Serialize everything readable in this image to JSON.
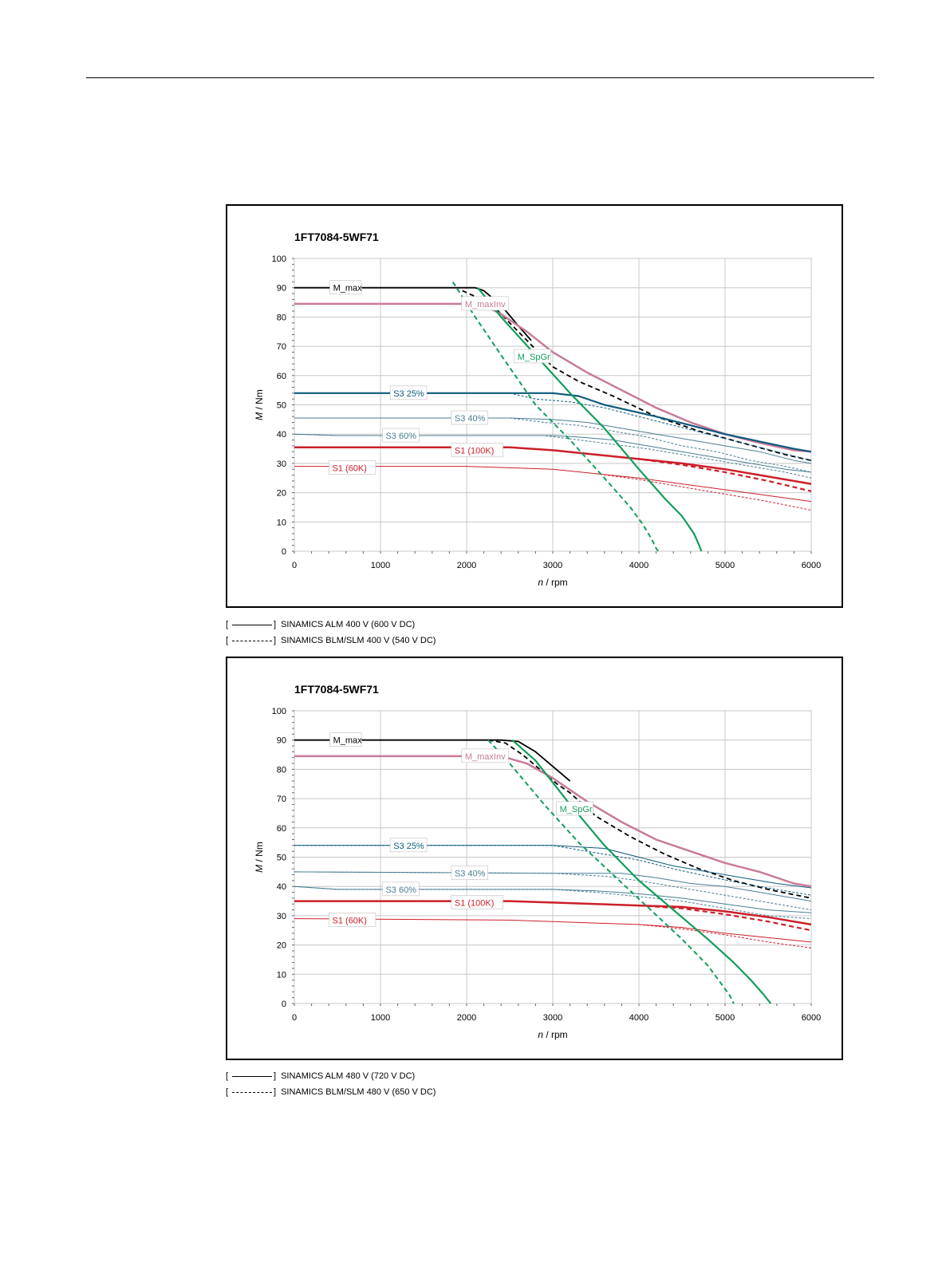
{
  "page": {
    "top_rule": true
  },
  "charts": [
    {
      "id": "chart1",
      "legend": [
        {
          "open": "[",
          "style": "solid",
          "close": "]",
          "label": "SINAMICS ALM 400 V (600 V DC)"
        },
        {
          "open": "[",
          "style": "dashed",
          "close": "]",
          "label": "SINAMICS BLM/SLM 400 V (540 V DC)"
        }
      ]
    },
    {
      "id": "chart2",
      "legend": [
        {
          "open": "[",
          "style": "solid",
          "close": "]",
          "label": "SINAMICS ALM 480 V (720 V DC)"
        },
        {
          "open": "[",
          "style": "dashed",
          "close": "]",
          "label": "SINAMICS BLM/SLM 480 V (650 V DC)"
        }
      ]
    }
  ],
  "chart_data": [
    {
      "type": "line",
      "title": "1FT7084-5WF71",
      "xlabel_italic": "n",
      "xlabel_unit": " / rpm",
      "ylabel_italic": "M",
      "ylabel_unit": " / Nm",
      "xlim": [
        0,
        6000
      ],
      "ylim": [
        0,
        100
      ],
      "xticks": [
        0,
        1000,
        2000,
        3000,
        4000,
        5000,
        6000
      ],
      "yticks": [
        0,
        10,
        20,
        30,
        40,
        50,
        60,
        70,
        80,
        90,
        100
      ],
      "colors": {
        "black": "#000000",
        "pink": "#c97a9a",
        "teal": "#0e5a7c",
        "lteal": "#4a7d93",
        "red": "#cc1f2a",
        "green": "#129e5b"
      },
      "series": [
        {
          "name": "M_max",
          "color": "black",
          "width": 1.8,
          "dash": false,
          "x": [
            0,
            2100,
            2200,
            2400,
            2600,
            2750
          ],
          "y": [
            90,
            90,
            89,
            84,
            77,
            72
          ]
        },
        {
          "name": "M_max dashed",
          "color": "black",
          "width": 1.8,
          "dash": true,
          "x": [
            1950,
            2100,
            2300,
            2500,
            2700,
            3000,
            3300,
            3700,
            4200,
            4700,
            5200,
            5700,
            6000
          ],
          "y": [
            89,
            87,
            84,
            78,
            72,
            63,
            58,
            53,
            46,
            41,
            37,
            33,
            31
          ]
        },
        {
          "name": "M_maxInv",
          "color": "pink",
          "width": 2.5,
          "dash": false,
          "x": [
            0,
            2000,
            2200,
            2400,
            2700,
            3000,
            3400,
            3800,
            4200,
            4600,
            5000,
            5400,
            5800,
            6000
          ],
          "y": [
            84.5,
            84.5,
            84,
            81,
            75,
            68,
            61,
            55,
            49,
            44,
            40,
            37,
            34.5,
            34
          ]
        },
        {
          "name": "S3 25%",
          "color": "teal",
          "width": 2.2,
          "dash": false,
          "x": [
            0,
            2500,
            3000,
            3300,
            3600,
            3900,
            4200,
            4600,
            5000,
            5400,
            5800,
            6000
          ],
          "y": [
            54,
            54,
            54,
            53,
            50,
            48,
            46,
            43,
            40,
            37.5,
            35,
            34
          ]
        },
        {
          "name": "S3 25% dashed",
          "color": "teal",
          "width": 1,
          "dash": true,
          "x": [
            0,
            2500,
            2800,
            3200,
            3600,
            4000,
            4400,
            4800,
            5200,
            5600,
            6000
          ],
          "y": [
            54,
            54,
            52,
            51,
            49,
            46,
            43,
            40,
            37,
            34,
            31
          ]
        },
        {
          "name": "S3 40%",
          "color": "lteal",
          "width": 1,
          "dash": false,
          "x": [
            0,
            2500,
            3000,
            3400,
            3800,
            4200,
            4600,
            5000,
            5400,
            5800,
            6000
          ],
          "y": [
            45.5,
            45.5,
            45,
            44,
            42,
            40,
            38,
            36,
            34,
            31,
            30
          ]
        },
        {
          "name": "S3 40% dashed",
          "color": "lteal",
          "width": 1,
          "dash": true,
          "x": [
            0,
            2500,
            2900,
            3300,
            3700,
            4100,
            4500,
            4900,
            5300,
            5700,
            6000
          ],
          "y": [
            45.5,
            45.5,
            44,
            43,
            41,
            39,
            36,
            34,
            31,
            29,
            27
          ]
        },
        {
          "name": "S3 60%",
          "color": "lteal",
          "width": 1,
          "dash": false,
          "x": [
            0,
            500,
            3000,
            3300,
            3700,
            4100,
            4500,
            4900,
            5300,
            5700,
            6000
          ],
          "y": [
            40,
            39.5,
            39.5,
            39,
            38,
            36,
            34,
            32,
            30,
            28,
            27
          ]
        },
        {
          "name": "S3 60% dashed",
          "color": "lteal",
          "width": 1,
          "dash": true,
          "x": [
            0,
            500,
            2900,
            3300,
            3700,
            4100,
            4500,
            4900,
            5300,
            5700,
            6000
          ],
          "y": [
            40,
            39.5,
            39.5,
            38,
            36.5,
            35,
            33,
            31,
            29,
            27,
            25
          ]
        },
        {
          "name": "S1 (100K)",
          "color": "red",
          "width": 2.5,
          "dash": false,
          "x": [
            0,
            2500,
            3000,
            3500,
            4000,
            4500,
            5000,
            5500,
            6000
          ],
          "y": [
            35.5,
            35.5,
            34.5,
            33,
            31.5,
            30,
            28,
            25.5,
            23
          ]
        },
        {
          "name": "S1 (100K) dashed",
          "color": "red",
          "width": 2.2,
          "dash": true,
          "x": [
            3500,
            4000,
            4500,
            5000,
            5500,
            6000
          ],
          "y": [
            33,
            31.5,
            29.5,
            27,
            24,
            20.5
          ]
        },
        {
          "name": "S1 (60K)",
          "color": "red",
          "width": 1,
          "dash": false,
          "x": [
            0,
            2000,
            3000,
            3500,
            4000,
            4500,
            5000,
            5500,
            6000
          ],
          "y": [
            29,
            29,
            28,
            26.5,
            25,
            23,
            21,
            19,
            17
          ]
        },
        {
          "name": "S1 (60K) dashed",
          "color": "red",
          "width": 1,
          "dash": true,
          "x": [
            3500,
            4000,
            4500,
            5000,
            5500,
            6000
          ],
          "y": [
            26.5,
            24.5,
            22,
            19.5,
            17,
            14
          ]
        },
        {
          "name": "M_SpGr",
          "color": "green",
          "width": 2.2,
          "dash": false,
          "x": [
            2130,
            2400,
            2800,
            3200,
            3600,
            4000,
            4300,
            4500,
            4640,
            4700,
            4725
          ],
          "y": [
            90,
            80,
            67,
            54,
            42,
            28,
            18,
            12,
            6,
            2,
            0
          ]
        },
        {
          "name": "M_SpGr dashed",
          "color": "green",
          "width": 2,
          "dash": true,
          "x": [
            1840,
            2100,
            2400,
            2800,
            3200,
            3600,
            3900,
            4050,
            4150,
            4200,
            4225
          ],
          "y": [
            92,
            80,
            67,
            50,
            38,
            25,
            15,
            9,
            4,
            1,
            0
          ]
        }
      ],
      "labels": [
        {
          "text": "M_max",
          "x": 450,
          "y": 90,
          "color": "black"
        },
        {
          "text": "M_maxInv",
          "x": 1980,
          "y": 84.5,
          "color": "pink"
        },
        {
          "text": "M_SpGr",
          "x": 2590,
          "y": 66.5,
          "color": "green"
        },
        {
          "text": "S3 25%",
          "x": 1150,
          "y": 54,
          "color": "teal"
        },
        {
          "text": "S3 40%",
          "x": 1860,
          "y": 45.5,
          "color": "lteal"
        },
        {
          "text": "S3 60%",
          "x": 1060,
          "y": 39.5,
          "color": "lteal"
        },
        {
          "text": "S1 (100K)",
          "x": 1860,
          "y": 34.5,
          "color": "red"
        },
        {
          "text": "S1 (60K)",
          "x": 440,
          "y": 28.5,
          "color": "red"
        }
      ]
    },
    {
      "type": "line",
      "title": "1FT7084-5WF71",
      "xlabel_italic": "n",
      "xlabel_unit": " / rpm",
      "ylabel_italic": "M",
      "ylabel_unit": " / Nm",
      "xlim": [
        0,
        6000
      ],
      "ylim": [
        0,
        100
      ],
      "xticks": [
        0,
        1000,
        2000,
        3000,
        4000,
        5000,
        6000
      ],
      "yticks": [
        0,
        10,
        20,
        30,
        40,
        50,
        60,
        70,
        80,
        90,
        100
      ],
      "colors": {
        "black": "#000000",
        "pink": "#c97a9a",
        "teal": "#0e5a7c",
        "lteal": "#4a7d93",
        "red": "#cc1f2a",
        "green": "#129e5b"
      },
      "series": [
        {
          "name": "M_max",
          "color": "black",
          "width": 1.8,
          "dash": false,
          "x": [
            0,
            2400,
            2600,
            2800,
            3000,
            3200
          ],
          "y": [
            90,
            90,
            89.5,
            86,
            81,
            76
          ]
        },
        {
          "name": "M_max dashed",
          "color": "black",
          "width": 1.8,
          "dash": true,
          "x": [
            2250,
            2450,
            2650,
            2850,
            3050,
            3200,
            3500,
            3900,
            4300,
            4700,
            5100,
            5500,
            6000
          ],
          "y": [
            90,
            89,
            85,
            80,
            75,
            72,
            64,
            57,
            51,
            46,
            42,
            39,
            36
          ]
        },
        {
          "name": "M_maxInv",
          "color": "pink",
          "width": 2.5,
          "dash": false,
          "x": [
            0,
            2400,
            2700,
            3000,
            3400,
            3800,
            4200,
            4600,
            5000,
            5400,
            5800,
            6000
          ],
          "y": [
            84.5,
            84.5,
            82,
            77,
            69,
            62,
            56,
            52,
            48,
            45,
            41,
            40
          ]
        },
        {
          "name": "S3 25%",
          "color": "teal",
          "width": 1,
          "dash": false,
          "x": [
            0,
            3000,
            3600,
            4000,
            4400,
            4800,
            5200,
            5600,
            6000
          ],
          "y": [
            54,
            54,
            53,
            50,
            47,
            45,
            43,
            41,
            39.5
          ]
        },
        {
          "name": "S3 25% dashed",
          "color": "teal",
          "width": 1,
          "dash": true,
          "x": [
            0,
            3000,
            3600,
            4000,
            4400,
            4800,
            5200,
            5600,
            6000
          ],
          "y": [
            54,
            54,
            51,
            49,
            46,
            43.5,
            41,
            39,
            37
          ]
        },
        {
          "name": "S3 40%",
          "color": "lteal",
          "width": 1,
          "dash": false,
          "x": [
            0,
            3000,
            3800,
            4200,
            4600,
            5000,
            5400,
            5800,
            6000
          ],
          "y": [
            45,
            44.5,
            44.5,
            43,
            41,
            40,
            38,
            36,
            35
          ]
        },
        {
          "name": "S3 40% dashed",
          "color": "lteal",
          "width": 1,
          "dash": true,
          "x": [
            0,
            3000,
            3600,
            4000,
            4400,
            4800,
            5200,
            5600,
            6000
          ],
          "y": [
            45,
            44.5,
            43.5,
            42,
            40,
            38,
            36,
            34,
            32
          ]
        },
        {
          "name": "S3 60%",
          "color": "lteal",
          "width": 1,
          "dash": false,
          "x": [
            0,
            500,
            3000,
            3500,
            4000,
            4500,
            5000,
            5500,
            6000
          ],
          "y": [
            40,
            39,
            39,
            38.5,
            37.5,
            36,
            34,
            32,
            31
          ]
        },
        {
          "name": "S3 60% dashed",
          "color": "lteal",
          "width": 1,
          "dash": true,
          "x": [
            0,
            500,
            3000,
            3500,
            4000,
            4500,
            5000,
            5500,
            6000
          ],
          "y": [
            40,
            39,
            39,
            38,
            36.5,
            35,
            32.5,
            30,
            29
          ]
        },
        {
          "name": "S1 (100K)",
          "color": "red",
          "width": 2.5,
          "dash": false,
          "x": [
            0,
            2500,
            3000,
            3500,
            4000,
            4500,
            5000,
            5500,
            6000
          ],
          "y": [
            35,
            35,
            34.5,
            34,
            33.5,
            33,
            31.5,
            29.5,
            27
          ]
        },
        {
          "name": "S1 (100K) dashed",
          "color": "red",
          "width": 2.2,
          "dash": true,
          "x": [
            4000,
            4500,
            5000,
            5500,
            6000
          ],
          "y": [
            33.5,
            32.5,
            30.5,
            28,
            25
          ]
        },
        {
          "name": "S1 (60K)",
          "color": "red",
          "width": 1,
          "dash": false,
          "x": [
            0,
            2500,
            3000,
            3500,
            4000,
            4500,
            5000,
            5500,
            6000
          ],
          "y": [
            29,
            28.5,
            28,
            27.5,
            27,
            26,
            24,
            22.5,
            21
          ]
        },
        {
          "name": "S1 (60K) dashed",
          "color": "red",
          "width": 1,
          "dash": true,
          "x": [
            4000,
            4500,
            5000,
            5500,
            6000
          ],
          "y": [
            27,
            25.5,
            23.5,
            21,
            19
          ]
        },
        {
          "name": "M_SpGr",
          "color": "green",
          "width": 2.2,
          "dash": false,
          "x": [
            2530,
            2800,
            3200,
            3600,
            4000,
            4400,
            4800,
            5100,
            5300,
            5450,
            5530
          ],
          "y": [
            90,
            83,
            68,
            54,
            42,
            32,
            22,
            14,
            8,
            3,
            0
          ]
        },
        {
          "name": "M_SpGr dashed",
          "color": "green",
          "width": 2,
          "dash": true,
          "x": [
            2250,
            2500,
            2900,
            3300,
            3700,
            4100,
            4500,
            4800,
            4950,
            5050,
            5100
          ],
          "y": [
            90,
            82,
            68,
            55,
            44,
            33,
            22,
            13,
            7,
            3,
            0
          ]
        }
      ],
      "labels": [
        {
          "text": "M_max",
          "x": 450,
          "y": 90,
          "color": "black"
        },
        {
          "text": "M_maxInv",
          "x": 1980,
          "y": 84.5,
          "color": "pink"
        },
        {
          "text": "M_SpGr",
          "x": 3080,
          "y": 66.5,
          "color": "green"
        },
        {
          "text": "S3 25%",
          "x": 1150,
          "y": 54,
          "color": "teal"
        },
        {
          "text": "S3 40%",
          "x": 1860,
          "y": 44.5,
          "color": "lteal"
        },
        {
          "text": "S3 60%",
          "x": 1060,
          "y": 39,
          "color": "lteal"
        },
        {
          "text": "S1 (100K)",
          "x": 1860,
          "y": 34.5,
          "color": "red"
        },
        {
          "text": "S1 (60K)",
          "x": 440,
          "y": 28.5,
          "color": "red"
        }
      ]
    }
  ]
}
